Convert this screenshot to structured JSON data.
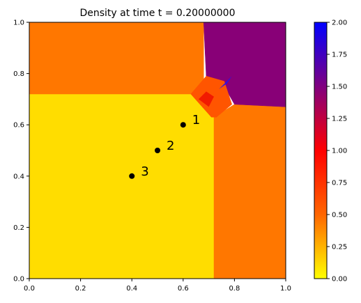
{
  "chart_data": {
    "type": "heatmap",
    "title": "Density at time t =     0.20000000",
    "xlim": [
      0,
      1
    ],
    "ylim": [
      0,
      1
    ],
    "x_ticks": [
      "0.0",
      "0.2",
      "0.4",
      "0.6",
      "0.8",
      "1.0"
    ],
    "y_ticks": [
      "0.0",
      "0.2",
      "0.4",
      "0.6",
      "0.8",
      "1.0"
    ],
    "colorbar": {
      "range": [
        0,
        2
      ],
      "ticks": [
        "0.00",
        "0.25",
        "0.50",
        "0.75",
        "1.00",
        "1.25",
        "1.50",
        "1.75",
        "2.00"
      ],
      "colors": [
        "#ffff00",
        "#ff6600",
        "#ff0000",
        "#800080",
        "#0000ff"
      ]
    },
    "regions": [
      {
        "name": "lower-left",
        "density": 0.13,
        "color": "#ffdd00",
        "polygon": [
          [
            0,
            0
          ],
          [
            0.72,
            0
          ],
          [
            0.72,
            0.63
          ],
          [
            0.71,
            0.72
          ],
          [
            0,
            0.72
          ]
        ]
      },
      {
        "name": "upper-left",
        "density": 0.5,
        "color": "#ff7700",
        "polygon": [
          [
            0,
            0.72
          ],
          [
            0.63,
            0.72
          ],
          [
            0.68,
            0.77
          ],
          [
            0.68,
            1
          ],
          [
            0,
            1
          ]
        ]
      },
      {
        "name": "lower-right",
        "density": 0.5,
        "color": "#ff7700",
        "polygon": [
          [
            0.72,
            0
          ],
          [
            1,
            0
          ],
          [
            1,
            0.67
          ],
          [
            0.8,
            0.68
          ],
          [
            0.72,
            0.63
          ]
        ]
      },
      {
        "name": "upper-right",
        "density": 1.5,
        "color": "#880077",
        "polygon": [
          [
            0.68,
            1
          ],
          [
            1,
            1
          ],
          [
            1,
            0.67
          ],
          [
            0.8,
            0.68
          ],
          [
            0.76,
            0.75
          ],
          [
            0.69,
            0.79
          ]
        ]
      },
      {
        "name": "interaction-zone",
        "density": 0.8,
        "color": "#ff5500",
        "polygon": [
          [
            0.63,
            0.72
          ],
          [
            0.69,
            0.79
          ],
          [
            0.76,
            0.77
          ],
          [
            0.79,
            0.68
          ],
          [
            0.73,
            0.63
          ],
          [
            0.71,
            0.63
          ]
        ]
      }
    ],
    "features": [
      {
        "name": "blue-jet",
        "color": "#2211ee",
        "polygon": [
          [
            0.74,
            0.74
          ],
          [
            0.79,
            0.79
          ],
          [
            0.77,
            0.76
          ]
        ]
      },
      {
        "name": "red-core",
        "color": "#ee1100",
        "polygon": [
          [
            0.66,
            0.7
          ],
          [
            0.7,
            0.67
          ],
          [
            0.72,
            0.71
          ],
          [
            0.69,
            0.73
          ]
        ]
      }
    ],
    "points": [
      {
        "label": "1",
        "x": 0.6,
        "y": 0.6
      },
      {
        "label": "2",
        "x": 0.5,
        "y": 0.5
      },
      {
        "label": "3",
        "x": 0.4,
        "y": 0.4
      }
    ]
  }
}
